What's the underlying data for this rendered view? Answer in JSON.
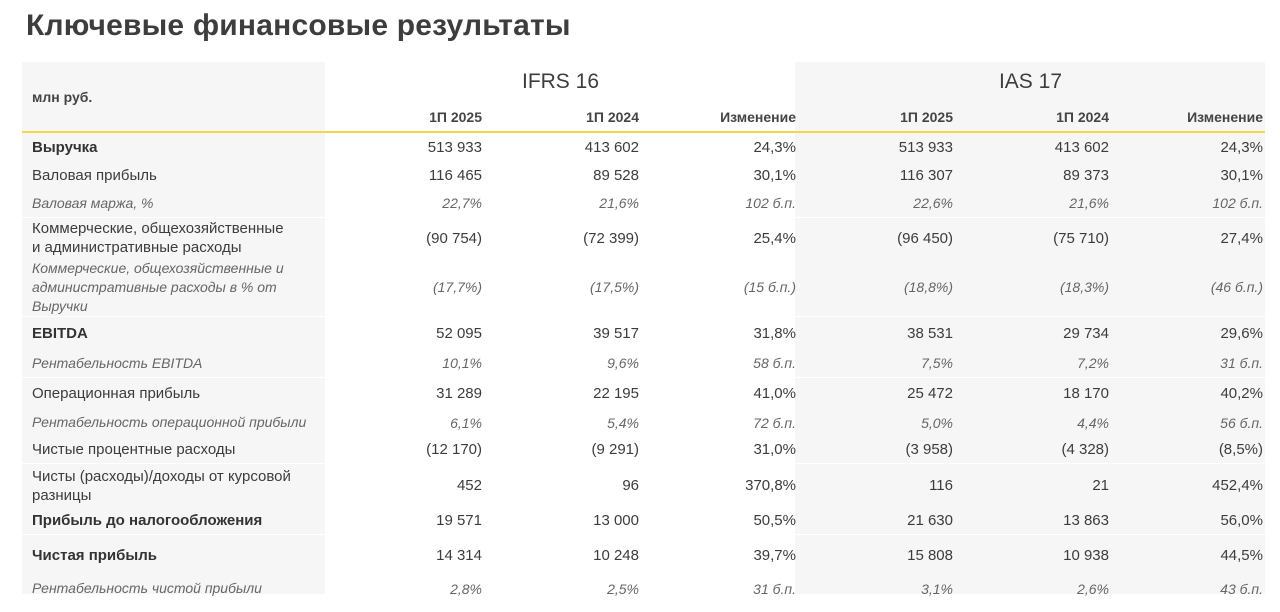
{
  "title": "Ключевые финансовые результаты",
  "table": {
    "unit_label": "млн руб.",
    "groups": [
      {
        "label": "IFRS 16"
      },
      {
        "label": "IAS 17"
      }
    ],
    "columns": [
      "1П 2025",
      "1П 2024",
      "Изменение",
      "1П 2025",
      "1П 2024",
      "Изменение"
    ],
    "rows": [
      {
        "label": "Выручка",
        "style": "bold",
        "values": [
          "513 933",
          "413 602",
          "24,3%",
          "513 933",
          "413 602",
          "24,3%"
        ]
      },
      {
        "label": "Валовая прибыль",
        "style": "normal",
        "values": [
          "116 465",
          "89 528",
          "30,1%",
          "116 307",
          "89 373",
          "30,1%"
        ]
      },
      {
        "label": "Валовая маржа, %",
        "style": "italic",
        "values": [
          "22,7%",
          "21,6%",
          "102 б.п.",
          "22,6%",
          "21,6%",
          "102 б.п."
        ]
      },
      {
        "label": "Коммерческие, общехозяйственные и административные расходы",
        "style": "normal",
        "values": [
          "(90 754)",
          "(72 399)",
          "25,4%",
          "(96 450)",
          "(75 710)",
          "27,4%"
        ]
      },
      {
        "label": "Коммерческие, общехозяйственные и административные расходы в % от Выручки",
        "style": "italic",
        "values": [
          "(17,7%)",
          "(17,5%)",
          "(15 б.п.)",
          "(18,8%)",
          "(18,3%)",
          "(46 б.п.)"
        ]
      },
      {
        "label": "EBITDA",
        "style": "bold",
        "values": [
          "52 095",
          "39 517",
          "31,8%",
          "38 531",
          "29 734",
          "29,6%"
        ]
      },
      {
        "label": "Рентабельность EBITDA",
        "style": "italic",
        "values": [
          "10,1%",
          "9,6%",
          "58 б.п.",
          "7,5%",
          "7,2%",
          "31 б.п."
        ]
      },
      {
        "label": "Операционная прибыль",
        "style": "normal",
        "values": [
          "31 289",
          "22 195",
          "41,0%",
          "25 472",
          "18 170",
          "40,2%"
        ]
      },
      {
        "label": "Рентабельность операционной прибыли",
        "style": "italic",
        "values": [
          "6,1%",
          "5,4%",
          "72 б.п.",
          "5,0%",
          "4,4%",
          "56 б.п."
        ]
      },
      {
        "label": "Чистые процентные расходы",
        "style": "normal",
        "values": [
          "(12 170)",
          "(9 291)",
          "31,0%",
          "(3 958)",
          "(4 328)",
          "(8,5%)"
        ]
      },
      {
        "label": "Чисты (расходы)/доходы от курсовой разницы",
        "style": "normal",
        "values": [
          "452",
          "96",
          "370,8%",
          "116",
          "21",
          "452,4%"
        ]
      },
      {
        "label": "Прибыль до налогообложения",
        "style": "bold",
        "values": [
          "19 571",
          "13 000",
          "50,5%",
          "21 630",
          "13 863",
          "56,0%"
        ]
      },
      {
        "label": "Чистая прибыль",
        "style": "bold",
        "values": [
          "14 314",
          "10 248",
          "39,7%",
          "15 808",
          "10 938",
          "44,5%"
        ]
      },
      {
        "label": "Рентабельность чистой прибыли",
        "style": "italic",
        "values": [
          "2,8%",
          "2,5%",
          "31 б.п.",
          "3,1%",
          "2,6%",
          "43 б.п."
        ]
      }
    ]
  },
  "colors": {
    "accent_line": "#f2d74a",
    "shaded_bg": "#f6f6f6",
    "text": "#3c3c3c"
  }
}
